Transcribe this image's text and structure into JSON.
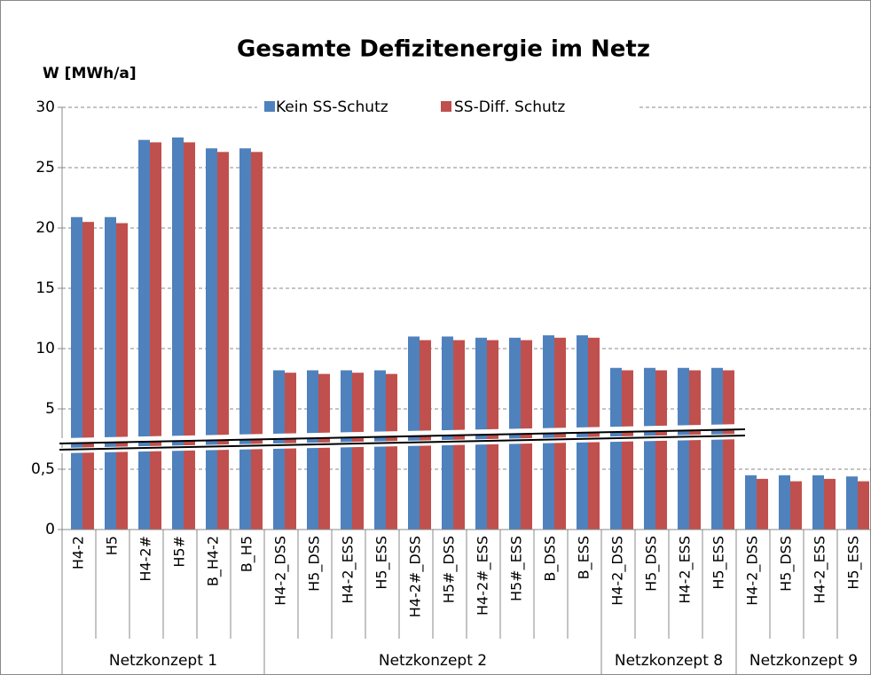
{
  "chart_data": {
    "type": "bar",
    "title": "Gesamte Defizitenergie im Netz",
    "y_label": "W [MWh/a]",
    "categories": [
      "H4-2",
      "H5",
      "H4-2#",
      "H5#",
      "B_H4-2",
      "B_H5",
      "H4-2_DSS",
      "H5_DSS",
      "H4-2_ESS",
      "H5_ESS",
      "H4-2#_DSS",
      "H5#_DSS",
      "H4-2#_ESS",
      "H5#_ESS",
      "B_DSS",
      "B_ESS",
      "H4-2_DSS",
      "H5_DSS",
      "H4-2_ESS",
      "H5_ESS",
      "H4-2_DSS",
      "H5_DSS",
      "H4-2_ESS",
      "H5_ESS"
    ],
    "groups": [
      {
        "name": "Netzkonzept 1",
        "count": 6
      },
      {
        "name": "Netzkonzept 2",
        "count": 10
      },
      {
        "name": "Netzkonzept 8",
        "count": 4
      },
      {
        "name": "Netzkonzept 9",
        "count": 4
      }
    ],
    "series": [
      {
        "name": "Kein SS-Schutz",
        "color": "#4f81bd",
        "values": [
          20.9,
          20.9,
          27.3,
          27.5,
          26.6,
          26.6,
          8.2,
          8.2,
          8.2,
          8.2,
          11.0,
          11.0,
          10.9,
          10.9,
          11.1,
          11.1,
          8.4,
          8.4,
          8.4,
          8.4,
          0.45,
          0.45,
          0.45,
          0.44
        ]
      },
      {
        "name": "SS-Diff. Schutz",
        "color": "#c0504d",
        "values": [
          20.5,
          20.4,
          27.1,
          27.1,
          26.3,
          26.3,
          8.0,
          7.9,
          8.0,
          7.9,
          10.7,
          10.7,
          10.7,
          10.7,
          10.9,
          10.9,
          8.2,
          8.2,
          8.2,
          8.2,
          0.42,
          0.4,
          0.42,
          0.4
        ]
      }
    ],
    "ylim_lower": [
      0,
      0.5
    ],
    "ylim": [
      5,
      30
    ],
    "yticks": [
      0,
      {
        "value": 0.5,
        "label": "0,5"
      },
      5,
      10,
      15,
      20,
      25,
      30
    ],
    "grid": true,
    "legend": "top"
  }
}
